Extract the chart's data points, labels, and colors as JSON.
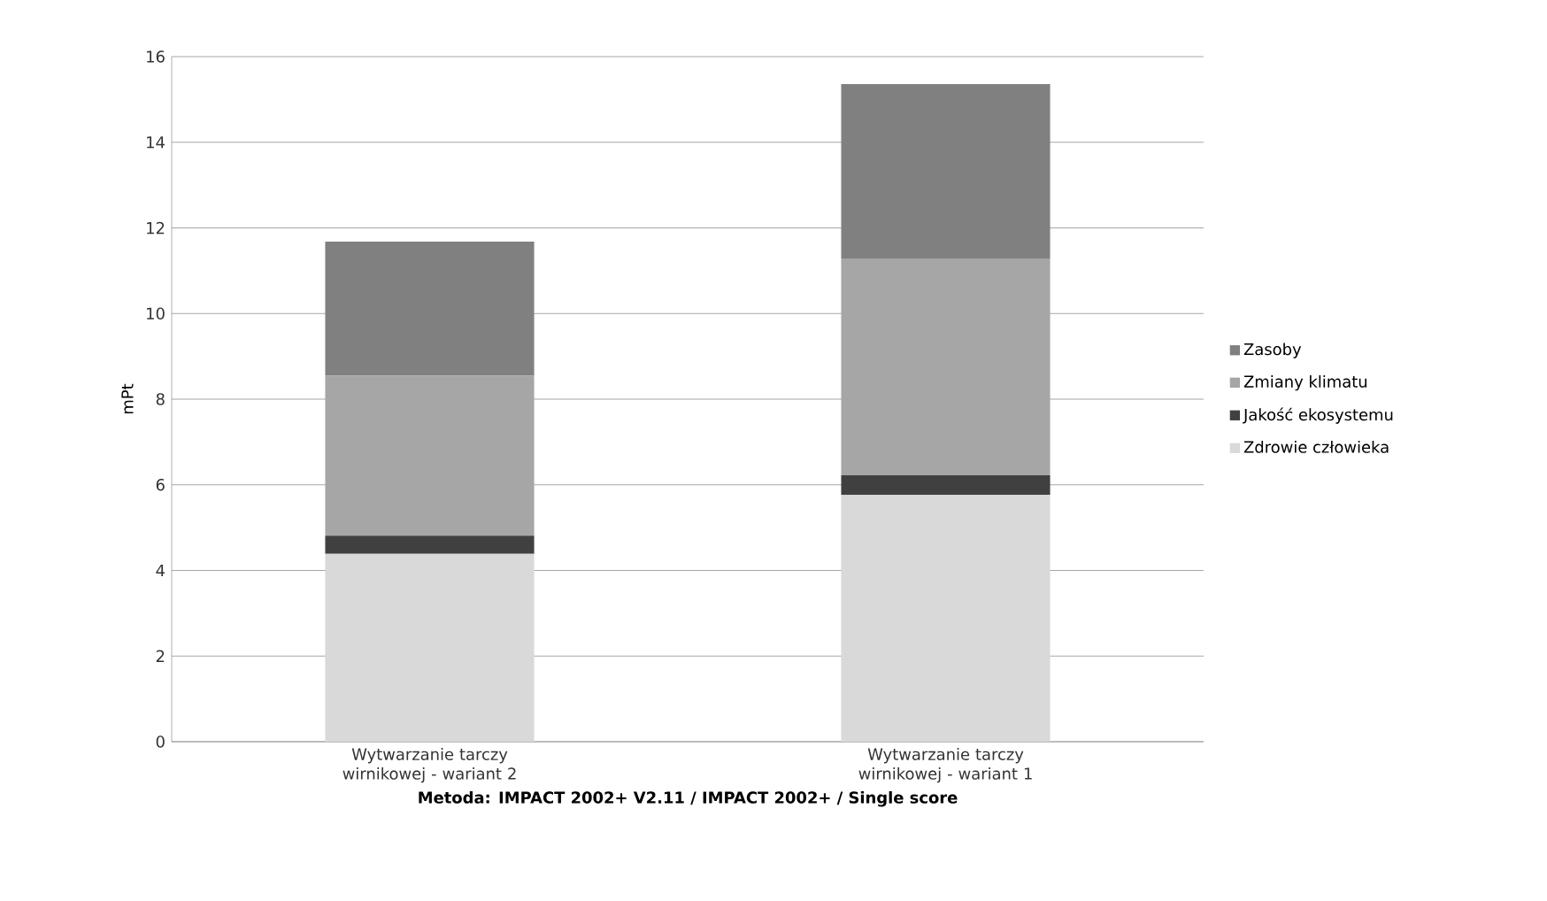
{
  "chart_data": {
    "type": "bar",
    "stacked": true,
    "xlabel": "Metoda: IMPACT 2002+ V2.11 / IMPACT 2002+ / Single score",
    "ylabel": "mPt",
    "categories": [
      "Wytwarzanie tarczy wirnikowej - wariant 2",
      "Wytwarzanie tarczy wirnikowej - wariant 1"
    ],
    "series": [
      {
        "name": "Zdrowie człowieka",
        "color": "#d9d9d9",
        "values": [
          4.39,
          5.76
        ]
      },
      {
        "name": "Jakość ekosystemu",
        "color": "#404040",
        "values": [
          0.42,
          0.46
        ]
      },
      {
        "name": "Zmiany klimatu",
        "color": "#a6a6a6",
        "values": [
          3.74,
          5.05
        ]
      },
      {
        "name": "Zasoby",
        "color": "#808080",
        "values": [
          3.13,
          4.09
        ]
      }
    ],
    "ylim": [
      0,
      16
    ],
    "yticks": [
      0,
      2,
      4,
      6,
      8,
      10,
      12,
      14,
      16
    ],
    "grid": "y",
    "legend": "right"
  }
}
